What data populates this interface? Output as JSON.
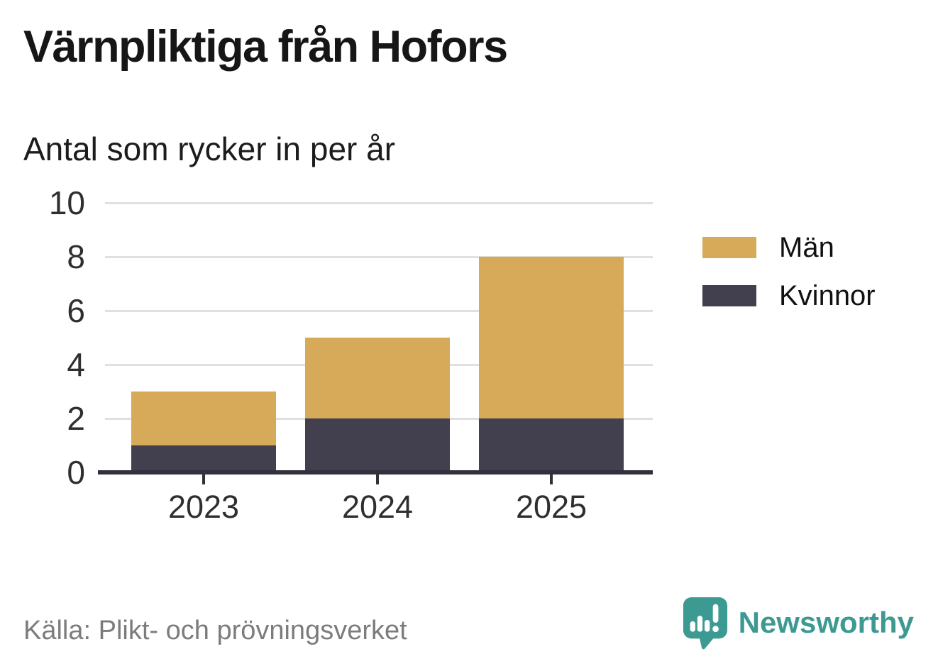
{
  "header": {
    "title": "Värnpliktiga från Hofors",
    "subtitle": "Antal som rycker in per år"
  },
  "chart_data": {
    "type": "bar",
    "stacked": true,
    "title": "Värnpliktiga från Hofors",
    "subtitle": "Antal som rycker in per år",
    "categories": [
      "2023",
      "2024",
      "2025"
    ],
    "series": [
      {
        "name": "Män",
        "color": "#d7aa59",
        "values": [
          2,
          3,
          6
        ]
      },
      {
        "name": "Kvinnor",
        "color": "#423f4e",
        "values": [
          1,
          2,
          2
        ]
      }
    ],
    "stack_bottom_series": "Kvinnor",
    "totals": [
      3,
      5,
      8
    ],
    "ylim": [
      0,
      10
    ],
    "yticks": [
      0,
      2,
      4,
      6,
      8,
      10
    ],
    "grid": "horizontal",
    "legend_position": "right"
  },
  "footer": {
    "source": "Källa: Plikt- och prövningsverket",
    "brand": "Newsworthy"
  },
  "colors": {
    "men": "#d7aa59",
    "women": "#423f4e",
    "grid": "#e0e0e0",
    "axis": "#32303c",
    "title_text": "#161616",
    "axis_text": "#2f2f2f",
    "source_text": "#7c7c7c",
    "brand_teal": "#3d9a92"
  }
}
